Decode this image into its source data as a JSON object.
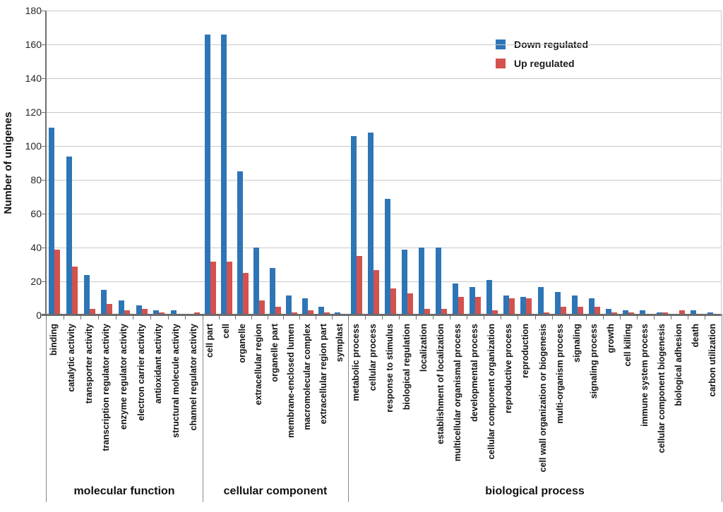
{
  "chart_data": {
    "type": "bar",
    "title": "",
    "ylabel": "Number of unigenes",
    "ylim": [
      0,
      180
    ],
    "y_ticks": [
      0,
      20,
      40,
      60,
      80,
      100,
      120,
      140,
      160,
      180
    ],
    "grid": true,
    "legend_position": "top-right",
    "series": [
      {
        "name": "Down regulated",
        "key": "down",
        "color": "#2E75B6"
      },
      {
        "name": "Up regulated",
        "key": "up",
        "color": "#D3524E"
      }
    ],
    "sections": [
      {
        "label": "molecular function",
        "categories": [
          "binding",
          "catalytic activity",
          "transporter activity",
          "transcription regulator activity",
          "enzyme regulator activity",
          "electron carrier activity",
          "antioxidant activity",
          "structural molecule activity",
          "channel regulator activity"
        ],
        "down": [
          110,
          93,
          23,
          14,
          8,
          5,
          2,
          2,
          0
        ],
        "up": [
          38,
          28,
          3,
          6,
          2,
          3,
          1,
          0,
          1
        ]
      },
      {
        "label": "cellular component",
        "categories": [
          "cell part",
          "cell",
          "organelle",
          "extracellular region",
          "organelle part",
          "membrane-enclosed lumen",
          "macromolecular complex",
          "extracellular region part",
          "symplast"
        ],
        "down": [
          165,
          165,
          84,
          39,
          27,
          11,
          9,
          4,
          1
        ],
        "up": [
          31,
          31,
          24,
          8,
          4,
          1,
          2,
          1,
          0
        ]
      },
      {
        "label": "biological process",
        "categories": [
          "metabolic process",
          "cellular process",
          "response to stimulus",
          "biological regulation",
          "localization",
          "establishment of localization",
          "multicellular organismal process",
          "developmental process",
          "cellular component organization",
          "reproductive process",
          "reproduction",
          "cell wall organization or biogenesis",
          "multi-organism process",
          "signaling",
          "signaling process",
          "growth",
          "cell killing",
          "immune system process",
          "cellular component biogenesis",
          "biological adhesion",
          "death",
          "carbon utilization"
        ],
        "down": [
          105,
          107,
          68,
          38,
          39,
          39,
          18,
          16,
          20,
          11,
          10,
          16,
          13,
          11,
          9,
          3,
          2,
          2,
          1,
          0,
          2,
          1
        ],
        "up": [
          34,
          26,
          15,
          12,
          3,
          3,
          10,
          10,
          2,
          9,
          9,
          1,
          4,
          4,
          4,
          1,
          1,
          0,
          1,
          2,
          0,
          0
        ]
      }
    ]
  }
}
